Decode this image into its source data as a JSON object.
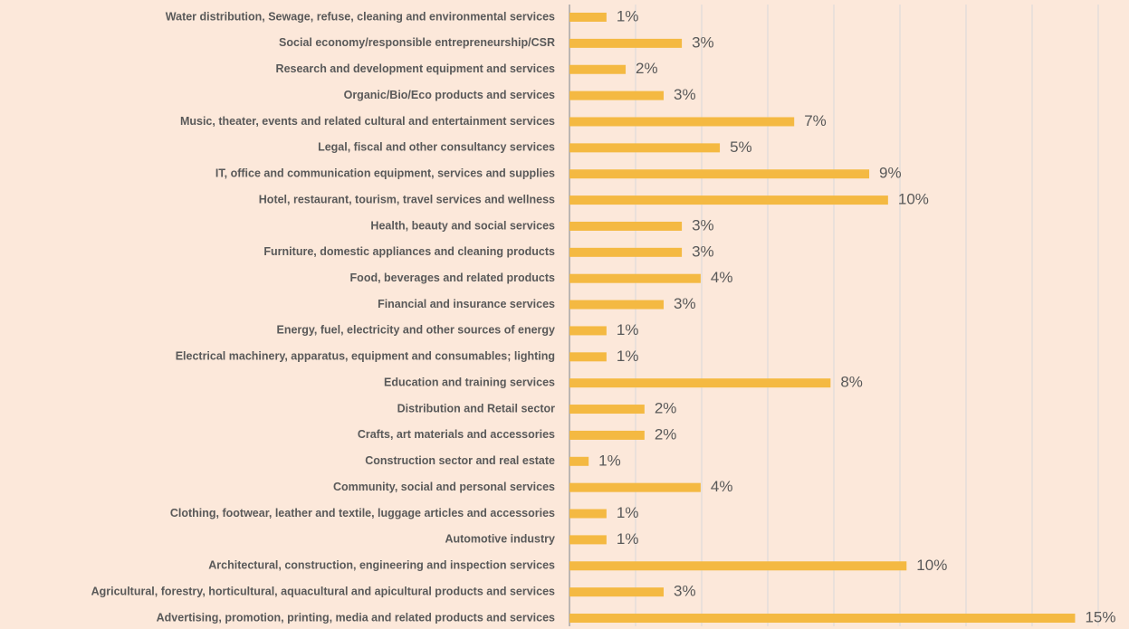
{
  "chart_data": {
    "type": "hbar",
    "categories": [
      "Water distribution, Sewage, refuse, cleaning and environmental services",
      "Social economy/responsible entrepreneurship/CSR",
      "Research and development equipment and services",
      "Organic/Bio/Eco products and services",
      "Music, theater, events and related cultural and entertainment services",
      "Legal, fiscal and other consultancy services",
      "IT, office and communication equipment, services and supplies",
      "Hotel, restaurant, tourism, travel services and wellness",
      "Health, beauty and social services",
      "Furniture, domestic appliances and cleaning products",
      "Food, beverages and related products",
      "Financial and insurance services",
      "Energy, fuel, electricity and other sources of energy",
      "Electrical machinery, apparatus, equipment and consumables; lighting",
      "Education and training services",
      "Distribution and Retail sector",
      "Crafts, art materials and accessories",
      "Construction sector and real estate",
      "Community, social and personal services",
      "Clothing, footwear, leather and textile, luggage articles and accessories",
      "Automotive industry",
      "Architectural, construction, engineering and inspection services",
      "Agricultural, forestry, horticultural, aquacultural and apicultural products and services",
      "Advertising, promotion, printing, media and related products and services"
    ],
    "values": [
      1.12,
      3.4,
      1.7,
      2.85,
      6.8,
      4.55,
      9.07,
      9.64,
      3.4,
      3.4,
      3.97,
      2.85,
      1.12,
      1.12,
      7.9,
      2.27,
      2.27,
      0.58,
      3.97,
      1.12,
      1.12,
      10.2,
      2.85,
      15.3
    ],
    "value_labels": [
      "1%",
      "3%",
      "2%",
      "3%",
      "7%",
      "5%",
      "9%",
      "10%",
      "3%",
      "3%",
      "4%",
      "3%",
      "1%",
      "1%",
      "8%",
      "2%",
      "2%",
      "1%",
      "4%",
      "1%",
      "1%",
      "10%",
      "3%",
      "15%"
    ],
    "color": "#f4b942",
    "xlim": [
      0,
      16
    ],
    "xticks": [
      0,
      2,
      4,
      6,
      8,
      10,
      12,
      14,
      16
    ],
    "grid": true,
    "tick_labels": false
  }
}
